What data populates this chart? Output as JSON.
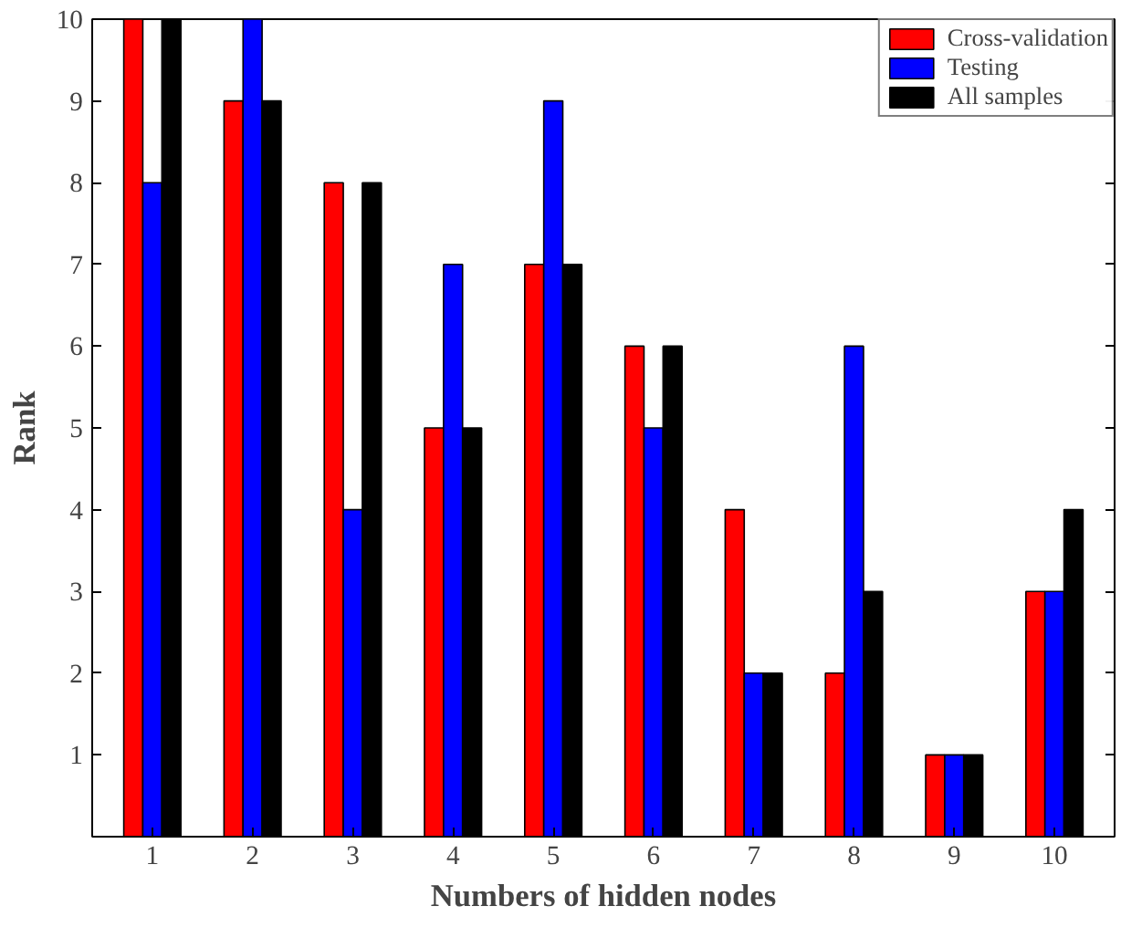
{
  "chart_data": {
    "type": "bar",
    "xlabel": "Numbers of hidden nodes",
    "ylabel": "Rank",
    "categories": [
      "1",
      "2",
      "3",
      "4",
      "5",
      "6",
      "7",
      "8",
      "9",
      "10"
    ],
    "series": [
      {
        "name": "Cross-validation",
        "color": "#ff0000",
        "values": [
          10,
          9,
          8,
          5,
          7,
          6,
          4,
          2,
          1,
          3
        ]
      },
      {
        "name": "Testing",
        "color": "#0000ff",
        "values": [
          8,
          10,
          4,
          7,
          9,
          5,
          2,
          6,
          1,
          3
        ]
      },
      {
        "name": "All samples",
        "color": "#000000",
        "values": [
          10,
          9,
          8,
          5,
          7,
          6,
          2,
          3,
          1,
          4
        ]
      }
    ],
    "ylim": [
      0,
      10
    ],
    "yticks": [
      1,
      2,
      3,
      4,
      5,
      6,
      7,
      8,
      9,
      10
    ],
    "grid": false,
    "legend": "top right"
  }
}
